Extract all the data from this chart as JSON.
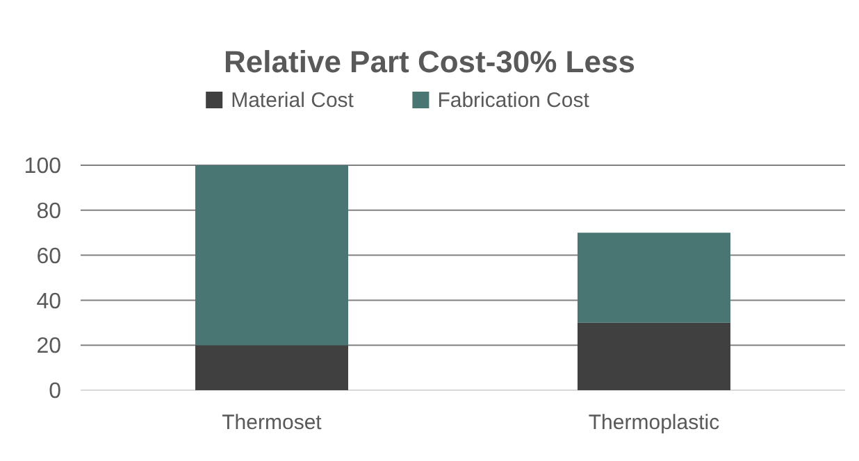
{
  "chart_data": {
    "type": "bar",
    "title": "Relative Part Cost-30% Less",
    "categories": [
      "Thermoset",
      "Thermoplastic"
    ],
    "stacked": true,
    "series": [
      {
        "name": "Material Cost",
        "color": "#404040",
        "values": [
          20,
          30
        ]
      },
      {
        "name": "Fabrication Cost",
        "color": "#497673",
        "values": [
          80,
          40
        ]
      }
    ],
    "ylim": [
      0,
      100
    ],
    "yticks": [
      0,
      20,
      40,
      60,
      80,
      100
    ],
    "grid": "y",
    "legend": "top"
  }
}
